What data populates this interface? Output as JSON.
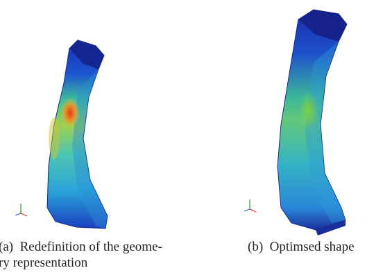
{
  "figure": {
    "subfigures": [
      {
        "caption_lines": [
          "(a)  Redefinition of the geome-",
          "ry representation"
        ]
      },
      {
        "caption_lines": [
          "(b)  Optimsed shape"
        ]
      }
    ]
  }
}
